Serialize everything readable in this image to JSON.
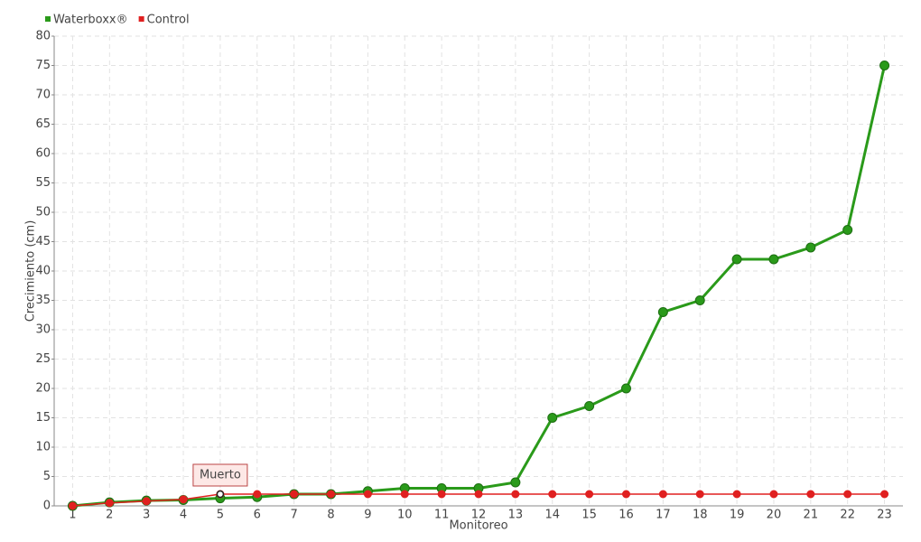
{
  "chart_data": {
    "type": "line",
    "xlabel": "Monitoreo",
    "ylabel": "Crecimiento (cm)",
    "categories": [
      "1",
      "2",
      "3",
      "4",
      "5",
      "6",
      "7",
      "8",
      "9",
      "10",
      "11",
      "12",
      "13",
      "14",
      "15",
      "16",
      "17",
      "18",
      "19",
      "20",
      "21",
      "22",
      "23"
    ],
    "series": [
      {
        "name": "Waterboxx®",
        "color": "#2a9a1a",
        "values": [
          0,
          0.6,
          0.9,
          1.0,
          1.3,
          1.5,
          2,
          2,
          2.5,
          3,
          3,
          3,
          4,
          15,
          17,
          20,
          33,
          35,
          42,
          42,
          44,
          47,
          75
        ]
      },
      {
        "name": "Control",
        "color": "#e02020",
        "values": [
          0,
          0.5,
          0.8,
          1.1,
          2,
          2,
          2,
          2,
          2,
          2,
          2,
          2,
          2,
          2,
          2,
          2,
          2,
          2,
          2,
          2,
          2,
          2,
          2
        ]
      }
    ],
    "annotations": [
      {
        "text": "Muerto",
        "x": "5",
        "y": 2
      }
    ],
    "ylim": [
      0,
      80
    ],
    "yticks": [
      0,
      5,
      10,
      15,
      20,
      25,
      30,
      35,
      40,
      45,
      50,
      55,
      60,
      65,
      70,
      75,
      80
    ],
    "grid": true,
    "legend": "top-left"
  }
}
